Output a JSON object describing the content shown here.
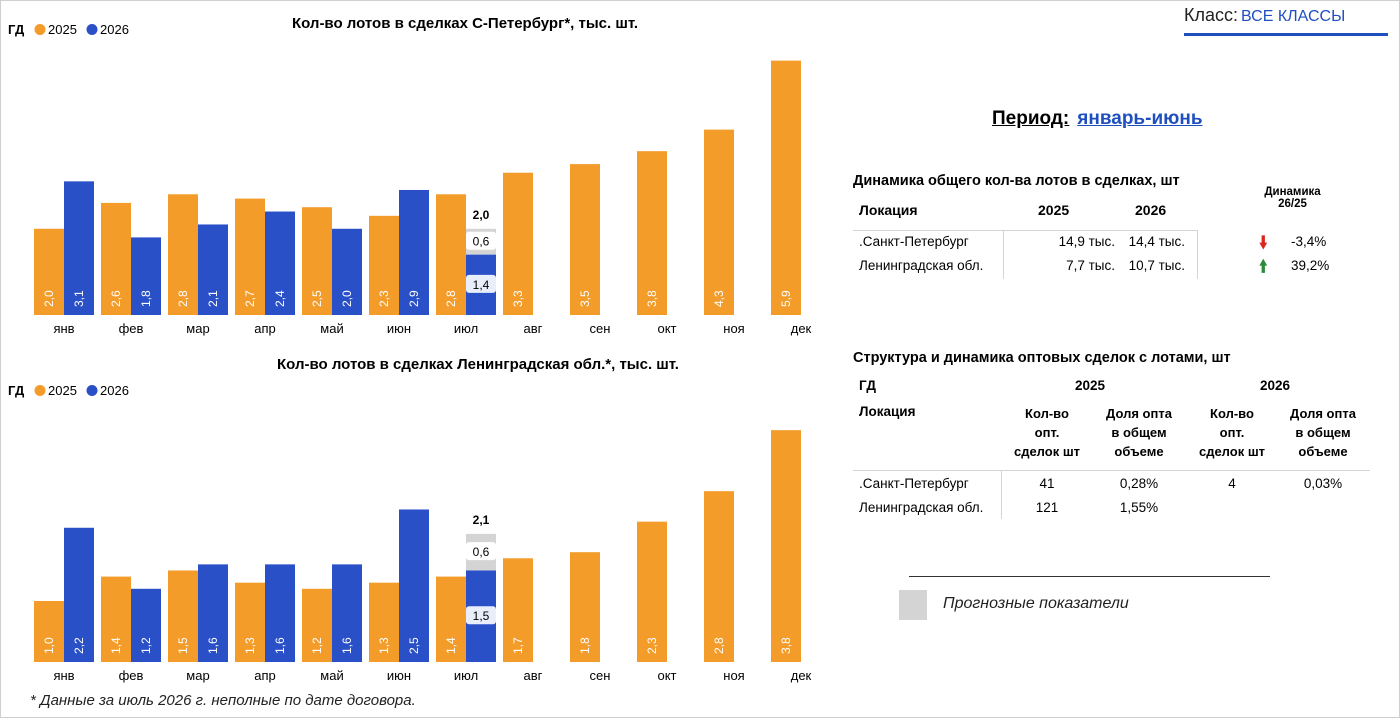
{
  "class_filter": {
    "label": "Класс:",
    "value": "ВСЕ КЛАССЫ"
  },
  "period": {
    "label": "Период:",
    "value": "январь-июнь"
  },
  "colors": {
    "y2025": "#f39c2a",
    "y2026": "#2a50c8",
    "forecast": "#d4d4d4"
  },
  "chart_data": [
    {
      "type": "bar",
      "title": "Кол-во лотов в сделках С-Петербург*, тыс. шт.",
      "legend": {
        "label": "ГД",
        "position": "top-left"
      },
      "categories": [
        "янв",
        "фев",
        "мар",
        "апр",
        "май",
        "июн",
        "июл",
        "авг",
        "сен",
        "окт",
        "ноя",
        "дек"
      ],
      "series": [
        {
          "name": "2025",
          "values": [
            2.0,
            2.6,
            2.8,
            2.7,
            2.5,
            2.3,
            2.8,
            3.3,
            3.5,
            3.8,
            4.3,
            5.9
          ]
        },
        {
          "name": "2026",
          "values": [
            3.1,
            1.8,
            2.1,
            2.4,
            2.0,
            2.9,
            1.4,
            null,
            null,
            null,
            null,
            null
          ]
        }
      ],
      "forecast": {
        "category": "июл",
        "base": 1.4,
        "added": 0.6,
        "total": 2.0
      },
      "value_labels": [
        "2,0",
        "2,6",
        "2,8",
        "2,7",
        "2,5",
        "2,3",
        "2,8",
        "3,3",
        "3,5",
        "3,8",
        "4,3",
        "5,9"
      ],
      "value_labels_2026": [
        "3,1",
        "1,8",
        "2,1",
        "2,4",
        "2,0",
        "2,9",
        "1,4"
      ],
      "forecast_labels": {
        "base": "1,4",
        "added": "0,6",
        "total": "2,0"
      },
      "ylim": [
        0,
        6.1
      ]
    },
    {
      "type": "bar",
      "title": "Кол-во лотов в сделках Ленинградская обл.*, тыс. шт.",
      "legend": {
        "label": "ГД",
        "position": "top-left"
      },
      "categories": [
        "янв",
        "фев",
        "мар",
        "апр",
        "май",
        "июн",
        "июл",
        "авг",
        "сен",
        "окт",
        "ноя",
        "дек"
      ],
      "series": [
        {
          "name": "2025",
          "values": [
            1.0,
            1.4,
            1.5,
            1.3,
            1.2,
            1.3,
            1.4,
            1.7,
            1.8,
            2.3,
            2.8,
            3.8
          ]
        },
        {
          "name": "2026",
          "values": [
            2.2,
            1.2,
            1.6,
            1.6,
            1.6,
            2.5,
            1.5,
            null,
            null,
            null,
            null,
            null
          ]
        }
      ],
      "forecast": {
        "category": "июл",
        "base": 1.5,
        "added": 0.6,
        "total": 2.1
      },
      "value_labels": [
        "1,0",
        "1,4",
        "1,5",
        "1,3",
        "1,2",
        "1,3",
        "1,4",
        "1,7",
        "1,8",
        "2,3",
        "2,8",
        "3,8"
      ],
      "value_labels_2026": [
        "2,2",
        "1,2",
        "1,6",
        "1,6",
        "1,6",
        "2,5",
        "1,5"
      ],
      "forecast_labels": {
        "base": "1,5",
        "added": "0,6",
        "total": "2,1"
      },
      "ylim": [
        0,
        3.95
      ]
    }
  ],
  "dynamics_table": {
    "title": "Динамика общего кол-ва лотов в сделках, шт",
    "headers": {
      "location": "Локация",
      "y2025": "2025",
      "y2026": "2026",
      "dyn_line1": "Динамика",
      "dyn_line2": "26/25"
    },
    "rows": [
      {
        "location": ".Санкт-Петербург",
        "y2025": "14,9 тыс.",
        "y2026": "14,4 тыс.",
        "trend": "down",
        "dynamics": "-3,4%"
      },
      {
        "location": "Ленинградская обл.",
        "y2025": "7,7 тыс.",
        "y2026": "10,7 тыс.",
        "trend": "up",
        "dynamics": "39,2%"
      }
    ]
  },
  "wholesale_table": {
    "title": "Структура и динамика оптовых сделок с лотами, шт",
    "group_label": "ГД",
    "year1": "2025",
    "year2": "2026",
    "headers": {
      "location": "Локация",
      "count_l1": "Кол-во",
      "count_l2": "опт.",
      "count_l3": "сделок шт",
      "share_l1": "Доля опта",
      "share_l2": "в общем",
      "share_l3": "объеме"
    },
    "rows": [
      {
        "location": ".Санкт-Петербург",
        "c2025": "41",
        "s2025": "0,28%",
        "c2026": "4",
        "s2026": "0,03%"
      },
      {
        "location": "Ленинградская обл.",
        "c2025": "121",
        "s2025": "1,55%",
        "c2026": "",
        "s2026": ""
      }
    ]
  },
  "forecast_legend": {
    "label": "Прогнозные показатели"
  },
  "footnote": "* Данные за июль 2026 г. неполные по дате договора."
}
